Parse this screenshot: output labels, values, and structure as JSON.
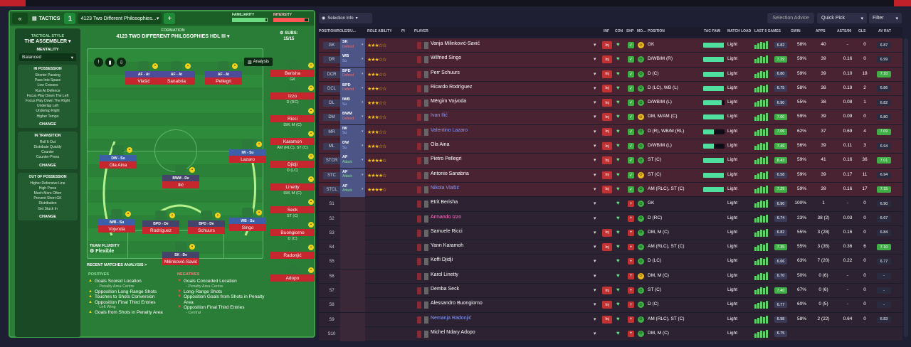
{
  "header": {
    "tactics_label": "TACTICS",
    "slot": "1",
    "tactic_name": "4123 Two Different Philosophies...",
    "familiarity_label": "FAMILIARITY",
    "intensity_label": "INTENSITY",
    "familiarity": 0.95,
    "intensity": 0.9
  },
  "side": {
    "style_title": "TACTICAL STYLE",
    "style": "THE ASSEMBLER",
    "mentality_title": "MENTALITY",
    "mentality": "Balanced",
    "phases": [
      {
        "title": "IN POSSESSION",
        "items": [
          "Shorter Passing",
          "Pass Into Space",
          "Low Crosses",
          "Run At Defence",
          "Focus Play Down The Left",
          "Focus Play Down The Right",
          "Underlap Left",
          "Underlap Right",
          "Higher Tempo"
        ],
        "change": "CHANGE"
      },
      {
        "title": "IN TRANSITION",
        "items": [
          "Roll It Out",
          "Distribute Quickly",
          "Counter",
          "Counter-Press"
        ],
        "change": "CHANGE"
      },
      {
        "title": "OUT OF POSSESSION",
        "items": [
          "Higher Defensive Line",
          "High Press",
          "Much More Often",
          "Prevent Short GK",
          "Distribution",
          "Get Stuck In"
        ],
        "change": "CHANGE"
      }
    ]
  },
  "pitch": {
    "formation_label": "FORMATION",
    "formation_name": "4123 TWO DIFFERENT PHILOSOPHIES HDL III",
    "subs_label": "SUBS:",
    "subs_count": "15/15",
    "analysis": "Analysis",
    "fluidity_label": "TEAM FLUIDITY",
    "fluidity": "Flexible",
    "players": [
      {
        "role": "AF - At",
        "name": "Vlašić"
      },
      {
        "role": "AF - At",
        "name": "Sanabria"
      },
      {
        "role": "AF - At",
        "name": "Pellegri"
      },
      {
        "role": "DW - Su",
        "name": "Ola Aina"
      },
      {
        "role": "IW - Su",
        "name": "Lazaro"
      },
      {
        "role": "BWM - De",
        "name": "Ilić"
      },
      {
        "role": "IWB - Su",
        "name": "Vojvoda"
      },
      {
        "role": "BPD - De",
        "name": "Rodríguez"
      },
      {
        "role": "BPD - De",
        "name": "Schuurs"
      },
      {
        "role": "WB - Su",
        "name": "Singo"
      },
      {
        "role": "SK - De",
        "name": "Milinković-Savić"
      }
    ],
    "subs": [
      {
        "name": "Berisha",
        "pos": "GK"
      },
      {
        "name": "Izzo",
        "pos": "D (RC)"
      },
      {
        "name": "Ricci",
        "pos": "DM, M (C)"
      },
      {
        "name": "Karamoh",
        "pos": "AM (RLC), ST (C)"
      },
      {
        "name": "Djidji",
        "pos": "D (LC)"
      },
      {
        "name": "Linetty",
        "pos": "DM, M (C)"
      },
      {
        "name": "Seck",
        "pos": "ST (C)"
      },
      {
        "name": "Buongiorno",
        "pos": "D (C)"
      },
      {
        "name": "Radonjić",
        "pos": ""
      },
      {
        "name": "Adopo",
        "pos": ""
      }
    ]
  },
  "recent": {
    "title": "RECENT MATCHES ANALYSIS >",
    "positives_title": "POSITIVES",
    "negatives_title": "NEGATIVES",
    "positives": [
      {
        "text": "Goals Scored Location",
        "sub": "- Penalty Area Centre"
      },
      {
        "text": "Opposition Long-Range Shots",
        "sub": ""
      },
      {
        "text": "Touches to Shots Conversion",
        "sub": ""
      },
      {
        "text": "Opposition Final Third Entries",
        "sub": "- Left Wing"
      },
      {
        "text": "Goals from Shots in Penalty Area",
        "sub": ""
      }
    ],
    "negatives": [
      {
        "text": "Goals Conceded Location",
        "sub": "- Penalty Area Centre"
      },
      {
        "text": "Long-Range Shots",
        "sub": ""
      },
      {
        "text": "Opposition Goals from Shots in Penalty Area",
        "sub": ""
      },
      {
        "text": "Opposition Final Third Entries",
        "sub": "- Central"
      }
    ]
  },
  "toolbar": {
    "selection_info": "Selection Info",
    "selection_advice": "Selection Advice",
    "quick_pick": "Quick Pick",
    "filter": "Filter"
  },
  "columns": [
    "POSITION/ROLE/DU...",
    "ROLE ABILITY",
    "PI",
    "PLAYER",
    "INF",
    "CON",
    "SHP",
    "MO...",
    "POSITION",
    "TAC FAMI",
    "MATCH LOAD",
    "LAST 5 GAMES",
    "GWIN",
    "APPS",
    "ASTS/90",
    "GLS",
    "AV RAT"
  ],
  "rows": [
    {
      "pos": "GK",
      "role": "SK",
      "duty": "Defend",
      "dc": "def",
      "stars": 3,
      "name": "Vanja Milinković-Savić",
      "nc": "",
      "inf": "Inj",
      "shp": "g",
      "mo": "y",
      "position": "GK",
      "tf": 0.95,
      "load": "Light",
      "avr": "6.82",
      "avc": "#3b3b58",
      "gwin": "58%",
      "apps": "40",
      "a90": "-",
      "gls": "0",
      "avrat": "6.87",
      "hi": false
    },
    {
      "pos": "DR",
      "role": "WB",
      "duty": "Su",
      "dc": "su",
      "stars": 3,
      "name": "Wilfried Singo",
      "nc": "",
      "inf": "Inj",
      "shp": "g",
      "mo": "g",
      "position": "D/WB/M (R)",
      "tf": 0.95,
      "load": "Light",
      "avr": "7.29",
      "avc": "#3fae46",
      "gwin": "59%",
      "apps": "39",
      "a90": "0.16",
      "gls": "0",
      "avrat": "6.99",
      "hi": false
    },
    {
      "pos": "DCR",
      "role": "BPD",
      "duty": "Defend",
      "dc": "def",
      "stars": 3,
      "name": "Perr Schuurs",
      "nc": "",
      "inf": "Inj",
      "shp": "g",
      "mo": "g",
      "position": "D (C)",
      "tf": 0.95,
      "load": "Light",
      "avr": "6.80",
      "avc": "#3b3b58",
      "gwin": "59%",
      "apps": "39",
      "a90": "0.10",
      "gls": "18",
      "avrat": "7.10",
      "hi": true
    },
    {
      "pos": "DCL",
      "role": "BPD",
      "duty": "Defend",
      "dc": "def",
      "stars": 3,
      "name": "Ricardo Rodríguez",
      "nc": "",
      "inf": "Inj",
      "shp": "g",
      "mo": "g",
      "position": "D (LC), WB (L)",
      "tf": 0.95,
      "load": "Light",
      "avr": "6.75",
      "avc": "#3b3b58",
      "gwin": "58%",
      "apps": "38",
      "a90": "0.19",
      "gls": "2",
      "avrat": "6.86",
      "hi": false
    },
    {
      "pos": "DL",
      "role": "IWB",
      "duty": "Su",
      "dc": "su",
      "stars": 3,
      "name": "Mërgim Vojvoda",
      "nc": "",
      "inf": "Inj",
      "shp": "g",
      "mo": "g",
      "position": "D/WB/M (L)",
      "tf": 0.85,
      "load": "Light",
      "avr": "6.90",
      "avc": "#3b3b58",
      "gwin": "55%",
      "apps": "38",
      "a90": "0.08",
      "gls": "1",
      "avrat": "6.82",
      "hi": false
    },
    {
      "pos": "DM",
      "role": "BWM",
      "duty": "Defend",
      "dc": "def",
      "stars": 3,
      "name": "Ivan Ilić",
      "nc": "hl",
      "inf": "Inj",
      "shp": "g",
      "mo": "y",
      "position": "DM, M/AM (C)",
      "tf": 0.95,
      "load": "Light",
      "avr": "7.00",
      "avc": "#3fae46",
      "gwin": "59%",
      "apps": "39",
      "a90": "0.09",
      "gls": "0",
      "avrat": "6.80",
      "hi": false
    },
    {
      "pos": "MR",
      "role": "IW",
      "duty": "Su",
      "dc": "su",
      "stars": 3.5,
      "name": "Valentino Lazaro",
      "nc": "hl",
      "inf": "Inj",
      "shp": "g",
      "mo": "g",
      "position": "D (R), WB/M (RL)",
      "tf": 0.5,
      "load": "Light",
      "avr": "7.06",
      "avc": "#3fae46",
      "gwin": "62%",
      "apps": "37",
      "a90": "0.69",
      "gls": "4",
      "avrat": "7.09",
      "hi": true
    },
    {
      "pos": "ML",
      "role": "DW",
      "duty": "Su",
      "dc": "su",
      "stars": 3,
      "name": "Ola Aina",
      "nc": "",
      "inf": "Inj",
      "shp": "g",
      "mo": "g",
      "position": "D/WB/M (L)",
      "tf": 0.5,
      "load": "Light",
      "avr": "7.49",
      "avc": "#3fae46",
      "gwin": "56%",
      "apps": "39",
      "a90": "0.11",
      "gls": "3",
      "avrat": "6.94",
      "hi": false
    },
    {
      "pos": "STCR",
      "role": "AF",
      "duty": "Attack",
      "dc": "at",
      "stars": 4,
      "name": "Pietro Pellegri",
      "nc": "",
      "inf": "Inj",
      "shp": "g",
      "mo": "g",
      "position": "ST (C)",
      "tf": 0.95,
      "load": "Light",
      "avr": "8.43",
      "avc": "#3fae46",
      "gwin": "59%",
      "apps": "41",
      "a90": "0.16",
      "gls": "36",
      "avrat": "7.01",
      "hi": true
    },
    {
      "pos": "STC",
      "role": "AF",
      "duty": "Attack",
      "dc": "at",
      "stars": 4,
      "name": "Antonio Sanabria",
      "nc": "",
      "inf": "Inj",
      "shp": "g",
      "mo": "y",
      "position": "ST (C)",
      "tf": 0.95,
      "load": "Light",
      "avr": "6.58",
      "avc": "#3b3b58",
      "gwin": "59%",
      "apps": "39",
      "a90": "0.17",
      "gls": "11",
      "avrat": "6.94",
      "hi": false
    },
    {
      "pos": "STCL",
      "role": "AF",
      "duty": "Attack",
      "dc": "at",
      "stars": 4,
      "name": "Nikola Vlašić",
      "nc": "hl",
      "inf": "Inj",
      "shp": "g",
      "mo": "g",
      "position": "AM (RLC), ST (C)",
      "tf": 0.95,
      "load": "Light",
      "avr": "7.29",
      "avc": "#3fae46",
      "gwin": "59%",
      "apps": "39",
      "a90": "0.16",
      "gls": "17",
      "avrat": "7.15",
      "hi": true
    },
    {
      "pos": "S1",
      "role": "",
      "duty": "",
      "dc": "",
      "stars": 0,
      "name": "Etrit Berisha",
      "nc": "",
      "inf": "",
      "shp": "r",
      "mo": "g",
      "position": "GK",
      "tf": 0,
      "load": "Light",
      "avr": "6.90",
      "avc": "#3b3b58",
      "gwin": "100%",
      "apps": "1",
      "a90": "-",
      "gls": "0",
      "avrat": "6.90",
      "hi": false
    },
    {
      "pos": "S2",
      "role": "",
      "duty": "",
      "dc": "",
      "stars": 0,
      "name": "Armando Izzo",
      "nc": "pink",
      "inf": "",
      "shp": "r",
      "mo": "g",
      "position": "D (RC)",
      "tf": 0,
      "load": "Light",
      "avr": "6.74",
      "avc": "#3b3b58",
      "gwin": "23%",
      "apps": "38 (2)",
      "a90": "0.03",
      "gls": "0",
      "avrat": "6.67",
      "hi": false
    },
    {
      "pos": "S3",
      "role": "",
      "duty": "",
      "dc": "",
      "stars": 0,
      "name": "Samuele Ricci",
      "nc": "",
      "inf": "Inj",
      "shp": "r",
      "mo": "g",
      "position": "DM, M (C)",
      "tf": 0,
      "load": "Light",
      "avr": "6.82",
      "avc": "#3b3b58",
      "gwin": "55%",
      "apps": "3 (28)",
      "a90": "0.16",
      "gls": "0",
      "avrat": "6.84",
      "hi": false
    },
    {
      "pos": "S4",
      "role": "",
      "duty": "",
      "dc": "",
      "stars": 0,
      "name": "Yann Karamoh",
      "nc": "",
      "inf": "Inj",
      "shp": "r",
      "mo": "g",
      "position": "AM (RLC), ST (C)",
      "tf": 0,
      "load": "Light",
      "avr": "7.35",
      "avc": "#3fae46",
      "gwin": "55%",
      "apps": "3 (35)",
      "a90": "0.36",
      "gls": "6",
      "avrat": "7.10",
      "hi": true
    },
    {
      "pos": "S5",
      "role": "",
      "duty": "",
      "dc": "",
      "stars": 0,
      "name": "Koffi Djidji",
      "nc": "",
      "inf": "",
      "shp": "r",
      "mo": "g",
      "position": "D (LC)",
      "tf": 0,
      "load": "Light",
      "avr": "6.66",
      "avc": "#3b3b58",
      "gwin": "63%",
      "apps": "7 (20)",
      "a90": "0.22",
      "gls": "0",
      "avrat": "6.77",
      "hi": false
    },
    {
      "pos": "S6",
      "role": "",
      "duty": "",
      "dc": "",
      "stars": 0,
      "name": "Karol Linetty",
      "nc": "",
      "inf": "",
      "shp": "r",
      "mo": "y",
      "position": "DM, M (C)",
      "tf": 0,
      "load": "Light",
      "avr": "6.70",
      "avc": "#3b3b58",
      "gwin": "50%",
      "apps": "0 (6)",
      "a90": "-",
      "gls": "0",
      "avrat": "-",
      "hi": false
    },
    {
      "pos": "S7",
      "role": "",
      "duty": "",
      "dc": "",
      "stars": 0,
      "name": "Demba Seck",
      "nc": "",
      "inf": "Inj",
      "shp": "r",
      "mo": "g",
      "position": "ST (C)",
      "tf": 0,
      "load": "Light",
      "avr": "7.40",
      "avc": "#3fae46",
      "gwin": "67%",
      "apps": "0 (6)",
      "a90": "-",
      "gls": "0",
      "avrat": "-",
      "hi": false
    },
    {
      "pos": "S8",
      "role": "",
      "duty": "",
      "dc": "",
      "stars": 0,
      "name": "Alessandro Buongiorno",
      "nc": "",
      "inf": "Inj",
      "shp": "r",
      "mo": "g",
      "position": "D (C)",
      "tf": 0,
      "load": "Light",
      "avr": "6.77",
      "avc": "#3b3b58",
      "gwin": "60%",
      "apps": "0 (5)",
      "a90": "-",
      "gls": "0",
      "avrat": "-",
      "hi": false
    },
    {
      "pos": "S9",
      "role": "",
      "duty": "",
      "dc": "",
      "stars": 0,
      "name": "Nemanja Radonjić",
      "nc": "hl",
      "inf": "Inj",
      "shp": "r",
      "mo": "g",
      "position": "AM (RLC), ST (C)",
      "tf": 0,
      "load": "Light",
      "avr": "6.98",
      "avc": "#3b3b58",
      "gwin": "58%",
      "apps": "2 (22)",
      "a90": "0.64",
      "gls": "0",
      "avrat": "6.83",
      "hi": false
    },
    {
      "pos": "S10",
      "role": "",
      "duty": "",
      "dc": "",
      "stars": 0,
      "name": "Michel Ndary Adopo",
      "nc": "",
      "inf": "",
      "shp": "r",
      "mo": "g",
      "position": "DM, M (C)",
      "tf": 0,
      "load": "Light",
      "avr": "6.75",
      "avc": "#3b3b58",
      "gwin": "",
      "apps": "",
      "a90": "",
      "gls": "",
      "avrat": "",
      "hi": false
    }
  ],
  "colors": {
    "pitch": "#2a7d36",
    "inj": "#c23232",
    "positive": "#3fae46",
    "accent": "#6bdc82"
  }
}
